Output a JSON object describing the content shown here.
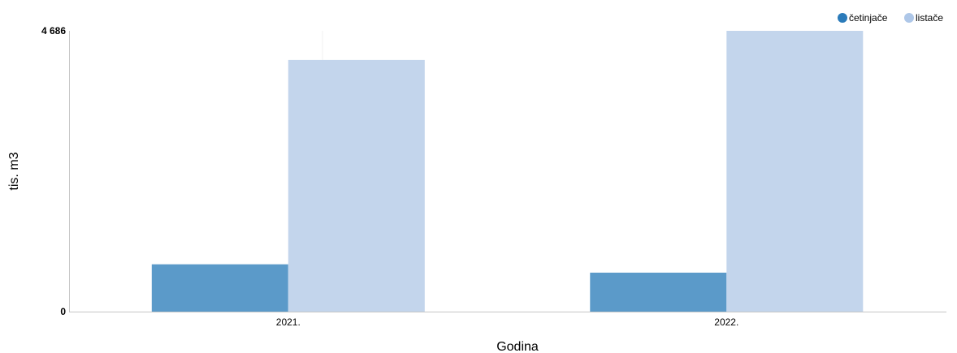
{
  "chart_data": {
    "type": "bar",
    "title": "",
    "xlabel": "Godina",
    "ylabel": "tis. m3",
    "categories": [
      "2021.",
      "2022."
    ],
    "series": [
      {
        "name": "četinjače",
        "color": "#5b9ac9",
        "legend_color": "#2b7bba",
        "values": [
          790,
          650
        ]
      },
      {
        "name": "listače",
        "color": "#c3d5ec",
        "legend_color": "#aec7e8",
        "values": [
          4200,
          4686
        ]
      }
    ],
    "ylim": [
      0,
      4686
    ],
    "yticks": [
      "0",
      "4 686"
    ],
    "grid": false,
    "legend_position": "top-right"
  }
}
